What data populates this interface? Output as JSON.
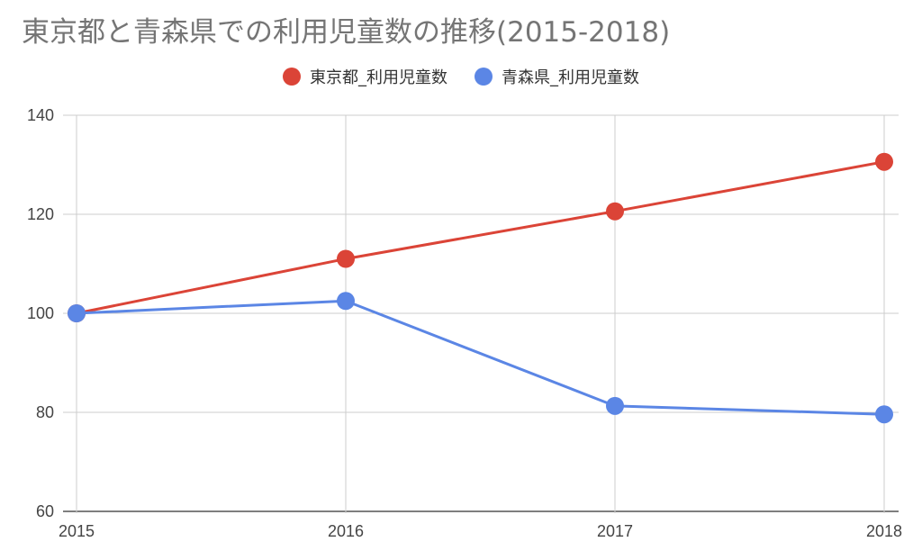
{
  "chart_data": {
    "type": "line",
    "title": "東京都と青森県での利用児童数の推移(2015-2018)",
    "x": [
      "2015",
      "2016",
      "2017",
      "2018"
    ],
    "series": [
      {
        "name": "東京都_利用児童数",
        "color": "#db4437",
        "values": [
          100,
          111,
          120.6,
          130.6
        ]
      },
      {
        "name": "青森県_利用児童数",
        "color": "#5b86e5",
        "values": [
          100,
          102.5,
          81.3,
          79.6
        ]
      }
    ],
    "yticks": [
      60,
      80,
      100,
      120,
      140
    ],
    "ylim": [
      60,
      140
    ],
    "grid": true,
    "legend_position": "top-center"
  }
}
